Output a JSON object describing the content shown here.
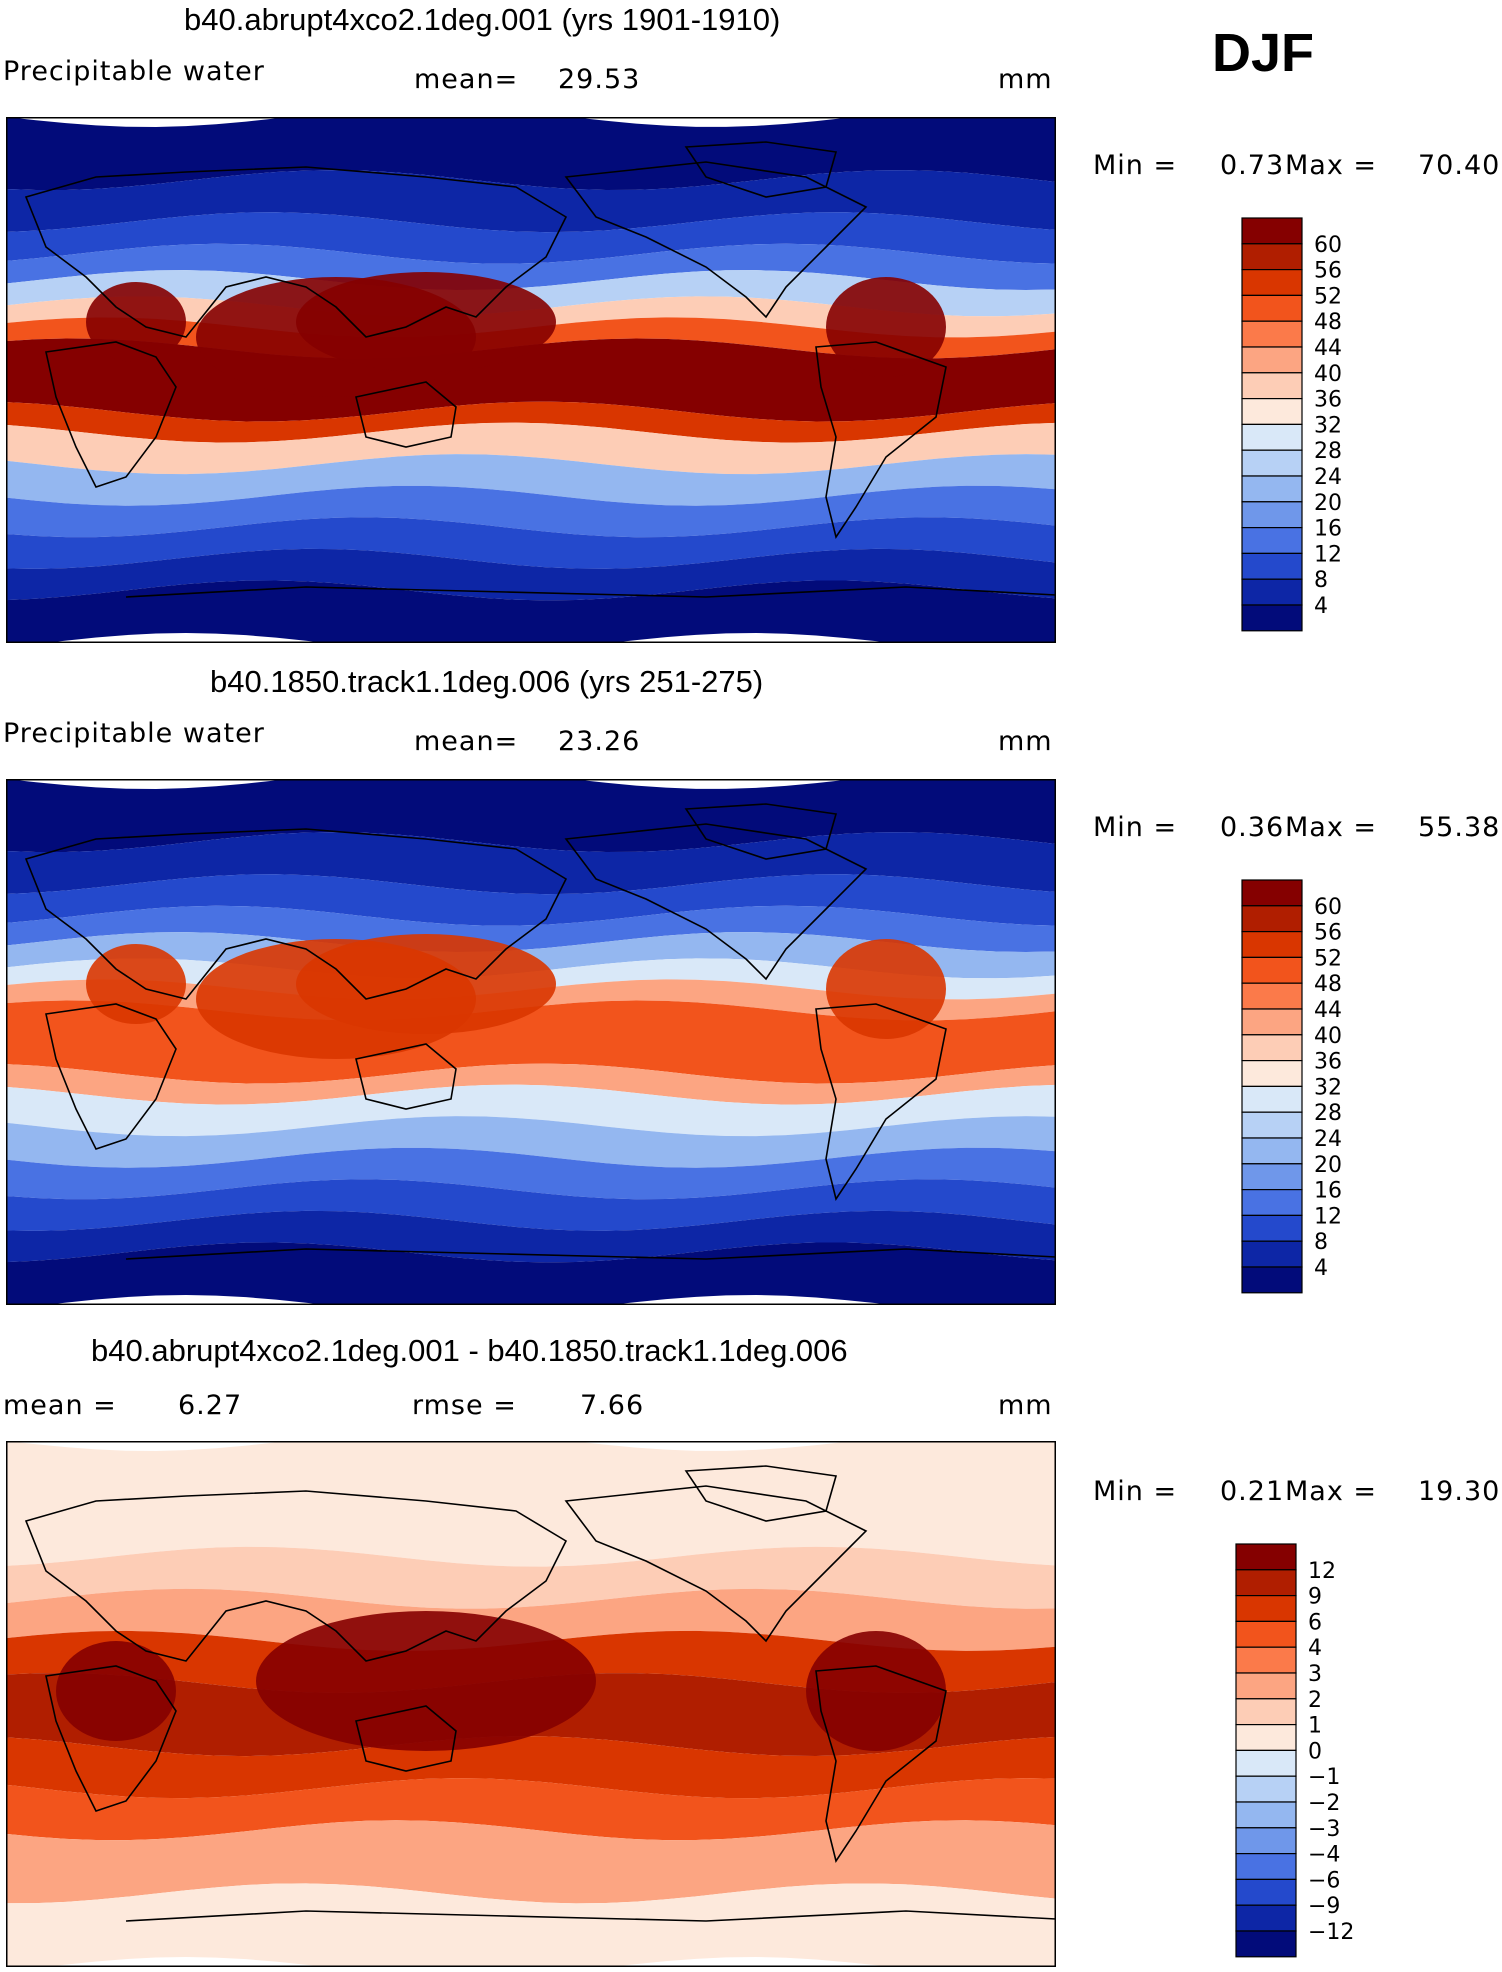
{
  "season": "DJF",
  "panels": [
    {
      "title": "b40.abrupt4xco2.1deg.001 (yrs 1901-1910)",
      "left_label": "Precipitable water",
      "stat_label": "mean=",
      "stat_value": "29.53",
      "extra_label": "",
      "extra_value": "",
      "units": "mm",
      "min_label": "Min =",
      "min_value": "0.73",
      "max_label": "Max =",
      "max_value": "70.40",
      "colorbar_labels": [
        "60",
        "56",
        "52",
        "48",
        "44",
        "40",
        "36",
        "32",
        "28",
        "24",
        "20",
        "16",
        "12",
        "8",
        "4"
      ],
      "colorbar_colors": [
        "#850000",
        "#b01e00",
        "#d93600",
        "#f2541c",
        "#fb7a4a",
        "#fca582",
        "#fdcdb6",
        "#fde9dc",
        "#d9e8f8",
        "#b7d1f5",
        "#94b7f0",
        "#6f97ea",
        "#4972e3",
        "#2449cc",
        "#0d26a6",
        "#020b7a"
      ],
      "map_mode": "abs",
      "map_field": "pw_future"
    },
    {
      "title": "b40.1850.track1.1deg.006 (yrs 251-275)",
      "left_label": "Precipitable water",
      "stat_label": "mean=",
      "stat_value": "23.26",
      "extra_label": "",
      "extra_value": "",
      "units": "mm",
      "min_label": "Min =",
      "min_value": "0.36",
      "max_label": "Max =",
      "max_value": "55.38",
      "colorbar_labels": [
        "60",
        "56",
        "52",
        "48",
        "44",
        "40",
        "36",
        "32",
        "28",
        "24",
        "20",
        "16",
        "12",
        "8",
        "4"
      ],
      "colorbar_colors": [
        "#850000",
        "#b01e00",
        "#d93600",
        "#f2541c",
        "#fb7a4a",
        "#fca582",
        "#fdcdb6",
        "#fde9dc",
        "#d9e8f8",
        "#b7d1f5",
        "#94b7f0",
        "#6f97ea",
        "#4972e3",
        "#2449cc",
        "#0d26a6",
        "#020b7a"
      ],
      "map_mode": "abs",
      "map_field": "pw_control"
    },
    {
      "title": "b40.abrupt4xco2.1deg.001 - b40.1850.track1.1deg.006",
      "left_label": "mean =",
      "stat_label": "",
      "stat_value": "6.27",
      "extra_label": "rmse =",
      "extra_value": "7.66",
      "units": "mm",
      "min_label": "Min =",
      "min_value": "0.21",
      "max_label": "Max =",
      "max_value": "19.30",
      "colorbar_labels": [
        "12",
        "9",
        "6",
        "4",
        "3",
        "2",
        "1",
        "0",
        "−1",
        "−2",
        "−3",
        "−4",
        "−6",
        "−9",
        "−12"
      ],
      "colorbar_colors": [
        "#850000",
        "#b01e00",
        "#d93600",
        "#f2541c",
        "#fb7a4a",
        "#fca582",
        "#fdcdb6",
        "#fde9dc",
        "#d9e8f8",
        "#b7d1f5",
        "#94b7f0",
        "#6f97ea",
        "#4972e3",
        "#2449cc",
        "#0d26a6",
        "#020b7a"
      ],
      "map_mode": "diff",
      "map_field": "pw_difference"
    }
  ]
}
